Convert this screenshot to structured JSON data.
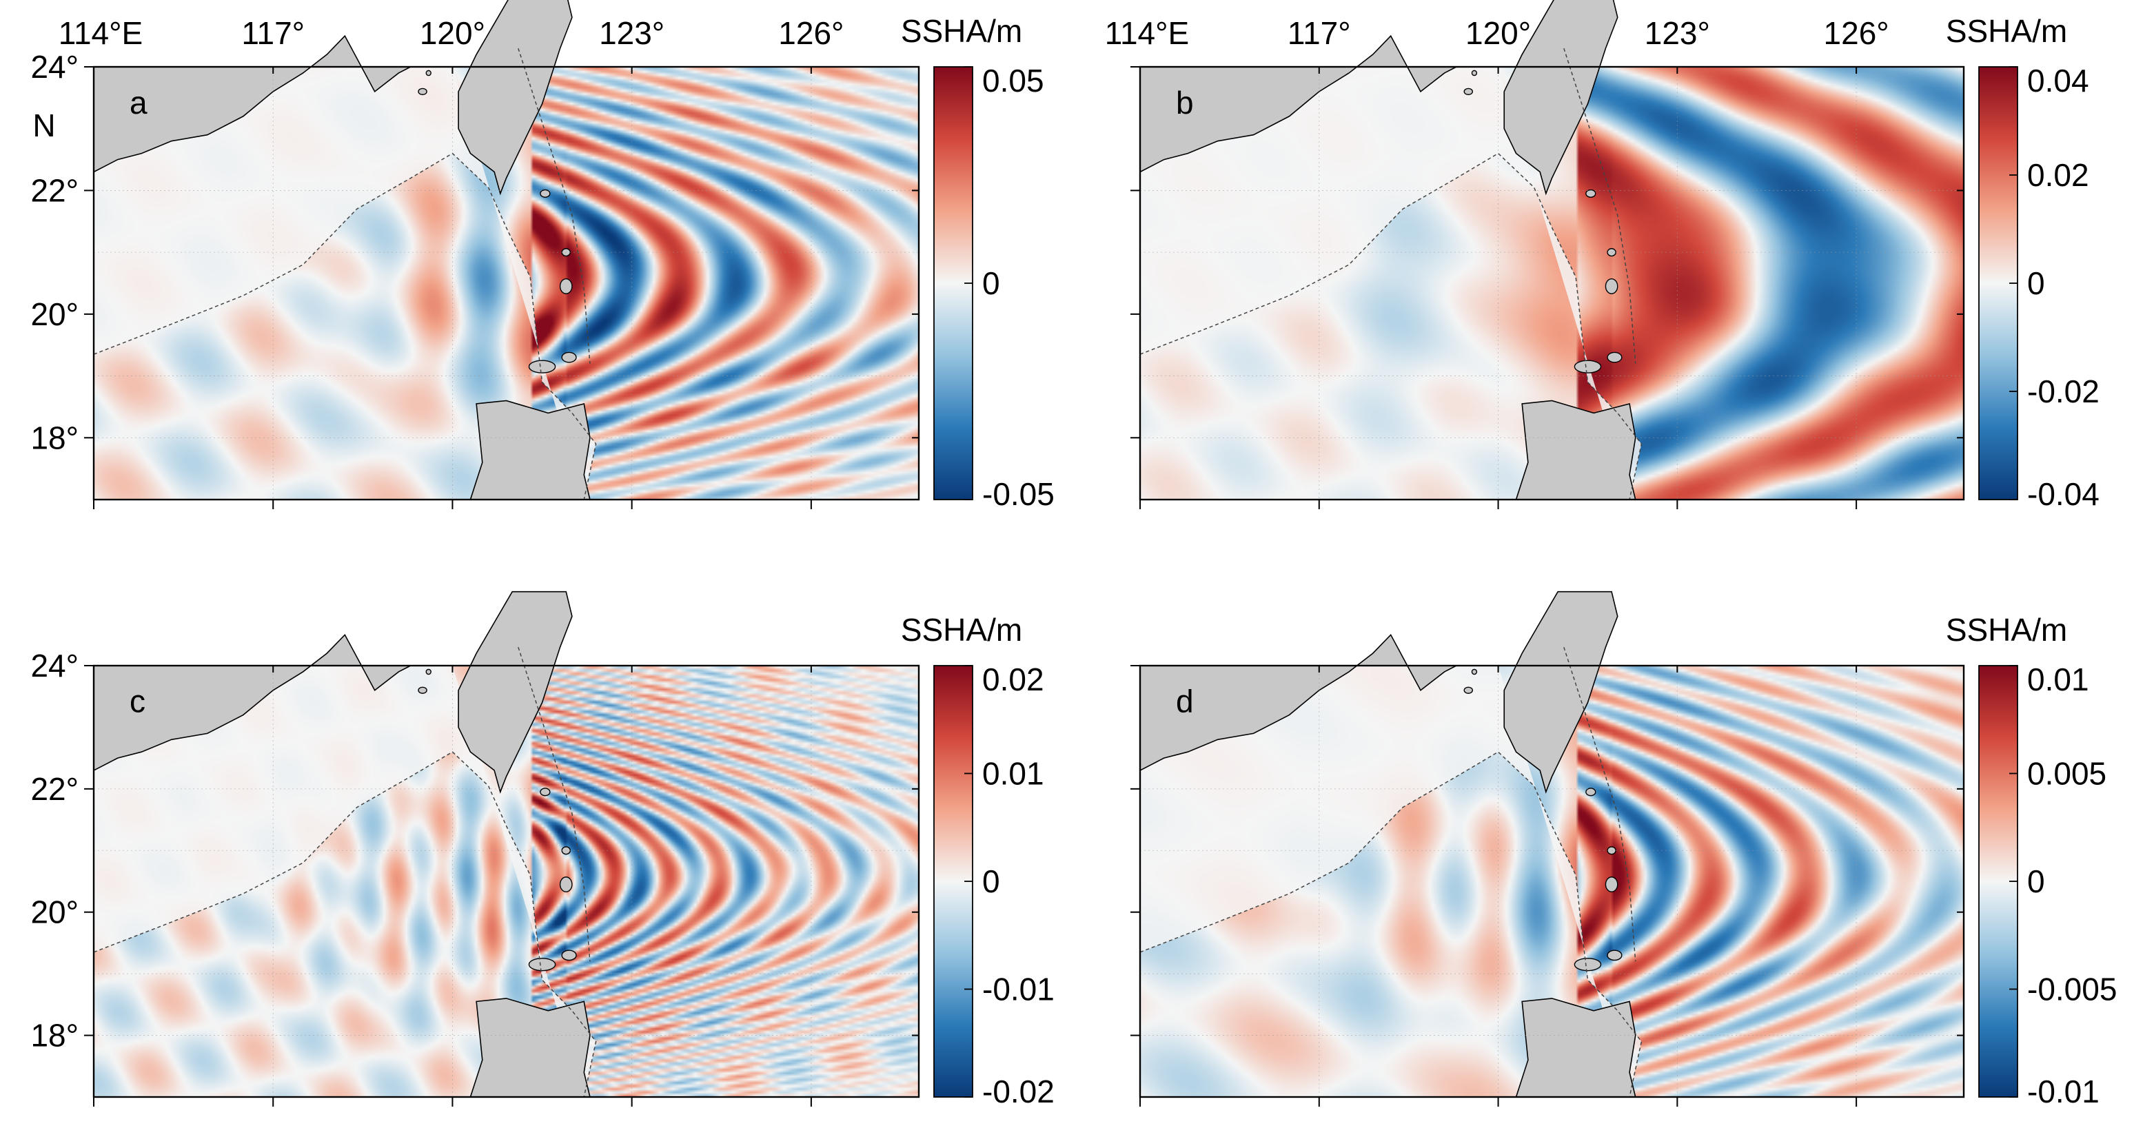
{
  "colorbar_unit": "SSHA/m",
  "lon_labels": [
    "114°E",
    "117°",
    "120°",
    "123°",
    "126°"
  ],
  "lat_labels": [
    "24°",
    "22°",
    "20°",
    "18°"
  ],
  "lat_unit_label": "N",
  "colors": {
    "land": "#c8c8c8",
    "sea_neutral": "#f4f5f5",
    "ramp": [
      "#0a3a78",
      "#2c7ab8",
      "#95c3df",
      "#f4f5f5",
      "#f2a48a",
      "#d2483c",
      "#820a1c"
    ]
  },
  "panels": [
    {
      "letter": "a",
      "colorbar_labels": [
        "0.05",
        "0",
        "-0.05"
      ],
      "field": {
        "wavelength_deg": 1.8,
        "amplitude": 0.9,
        "arc_curvature": 0.025,
        "decay": 0.06
      }
    },
    {
      "letter": "b",
      "colorbar_labels": [
        "0.04",
        "0.02",
        "0",
        "-0.02",
        "-0.04"
      ],
      "field": {
        "wavelength_deg": 5.6,
        "amplitude": 0.85,
        "arc_curvature": 0.015,
        "decay": 0.02
      }
    },
    {
      "letter": "c",
      "colorbar_labels": [
        "0.02",
        "0.01",
        "0",
        "-0.01",
        "-0.02"
      ],
      "field": {
        "wavelength_deg": 0.9,
        "amplitude": 0.8,
        "arc_curvature": 0.03,
        "decay": 0.12
      }
    },
    {
      "letter": "d",
      "colorbar_labels": [
        "0.01",
        "0.005",
        "0",
        "-0.005",
        "-0.01"
      ],
      "field": {
        "wavelength_deg": 1.6,
        "amplitude": 0.85,
        "arc_curvature": 0.02,
        "decay": 0.1
      }
    }
  ]
}
